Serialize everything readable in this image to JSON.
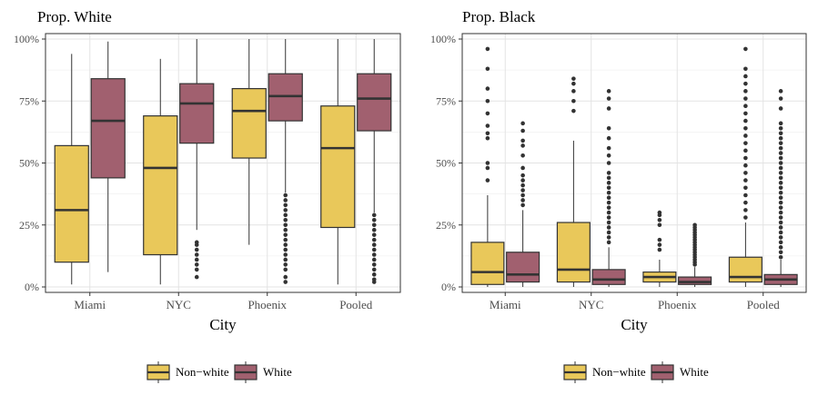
{
  "chart_data": [
    {
      "type": "box",
      "title": "Prop. White",
      "xlabel": "City",
      "ylabel": "",
      "categories": [
        "Miami",
        "NYC",
        "Phoenix",
        "Pooled"
      ],
      "y_ticks": [
        "0%",
        "25%",
        "50%",
        "75%",
        "100%"
      ],
      "ylim": [
        0,
        1
      ],
      "grid": true,
      "legend_position": "bottom",
      "series": [
        {
          "name": "Non−white",
          "color": "#E9C85A",
          "boxes": [
            {
              "min": 0.01,
              "q1": 0.1,
              "median": 0.31,
              "q3": 0.57,
              "max": 0.94,
              "outliers": []
            },
            {
              "min": 0.01,
              "q1": 0.13,
              "median": 0.48,
              "q3": 0.69,
              "max": 0.92,
              "outliers": []
            },
            {
              "min": 0.17,
              "q1": 0.52,
              "median": 0.71,
              "q3": 0.8,
              "max": 1.0,
              "outliers": []
            },
            {
              "min": 0.01,
              "q1": 0.24,
              "median": 0.56,
              "q3": 0.73,
              "max": 1.0,
              "outliers": []
            }
          ]
        },
        {
          "name": "White",
          "color": "#A1606F",
          "boxes": [
            {
              "min": 0.06,
              "q1": 0.44,
              "median": 0.67,
              "q3": 0.84,
              "max": 0.99,
              "outliers": []
            },
            {
              "min": 0.23,
              "q1": 0.58,
              "median": 0.74,
              "q3": 0.82,
              "max": 1.0,
              "outliers": [
                0.04,
                0.07,
                0.09,
                0.11,
                0.13,
                0.15,
                0.17,
                0.18
              ]
            },
            {
              "min": 0.38,
              "q1": 0.67,
              "median": 0.77,
              "q3": 0.86,
              "max": 1.0,
              "outliers": [
                0.02,
                0.04,
                0.07,
                0.09,
                0.11,
                0.13,
                0.15,
                0.17,
                0.19,
                0.21,
                0.23,
                0.25,
                0.27,
                0.29,
                0.31,
                0.33,
                0.35,
                0.37
              ]
            },
            {
              "min": 0.3,
              "q1": 0.63,
              "median": 0.76,
              "q3": 0.86,
              "max": 1.0,
              "outliers": [
                0.02,
                0.03,
                0.05,
                0.07,
                0.09,
                0.11,
                0.13,
                0.15,
                0.17,
                0.19,
                0.21,
                0.23,
                0.25,
                0.27,
                0.29
              ]
            }
          ]
        }
      ]
    },
    {
      "type": "box",
      "title": "Prop. Black",
      "xlabel": "City",
      "ylabel": "",
      "categories": [
        "Miami",
        "NYC",
        "Phoenix",
        "Pooled"
      ],
      "y_ticks": [
        "0%",
        "25%",
        "50%",
        "75%",
        "100%"
      ],
      "ylim": [
        0,
        1
      ],
      "grid": true,
      "legend_position": "bottom",
      "series": [
        {
          "name": "Non−white",
          "color": "#E9C85A",
          "boxes": [
            {
              "min": 0.0,
              "q1": 0.01,
              "median": 0.06,
              "q3": 0.18,
              "max": 0.37,
              "outliers": [
                0.43,
                0.48,
                0.5,
                0.6,
                0.62,
                0.65,
                0.7,
                0.75,
                0.8,
                0.88,
                0.96
              ]
            },
            {
              "min": 0.0,
              "q1": 0.02,
              "median": 0.07,
              "q3": 0.26,
              "max": 0.59,
              "outliers": [
                0.71,
                0.75,
                0.79,
                0.82,
                0.84
              ]
            },
            {
              "min": 0.0,
              "q1": 0.02,
              "median": 0.04,
              "q3": 0.06,
              "max": 0.11,
              "outliers": [
                0.15,
                0.17,
                0.19,
                0.25,
                0.27,
                0.29,
                0.3
              ]
            },
            {
              "min": 0.0,
              "q1": 0.02,
              "median": 0.04,
              "q3": 0.12,
              "max": 0.26,
              "outliers": [
                0.28,
                0.31,
                0.34,
                0.37,
                0.4,
                0.43,
                0.46,
                0.49,
                0.52,
                0.55,
                0.58,
                0.61,
                0.64,
                0.67,
                0.7,
                0.73,
                0.76,
                0.79,
                0.82,
                0.85,
                0.88,
                0.96
              ]
            }
          ]
        },
        {
          "name": "White",
          "color": "#A1606F",
          "boxes": [
            {
              "min": 0.0,
              "q1": 0.02,
              "median": 0.05,
              "q3": 0.14,
              "max": 0.31,
              "outliers": [
                0.33,
                0.35,
                0.37,
                0.39,
                0.41,
                0.43,
                0.45,
                0.48,
                0.53,
                0.57,
                0.59,
                0.63,
                0.66
              ]
            },
            {
              "min": 0.0,
              "q1": 0.01,
              "median": 0.03,
              "q3": 0.07,
              "max": 0.16,
              "outliers": [
                0.18,
                0.2,
                0.22,
                0.24,
                0.26,
                0.28,
                0.3,
                0.32,
                0.34,
                0.36,
                0.38,
                0.4,
                0.42,
                0.44,
                0.46,
                0.5,
                0.53,
                0.56,
                0.6,
                0.64,
                0.72,
                0.76,
                0.79
              ]
            },
            {
              "min": 0.0,
              "q1": 0.01,
              "median": 0.02,
              "q3": 0.04,
              "max": 0.08,
              "outliers": [
                0.09,
                0.1,
                0.11,
                0.12,
                0.13,
                0.14,
                0.15,
                0.16,
                0.17,
                0.18,
                0.19,
                0.2,
                0.21,
                0.22,
                0.23,
                0.24,
                0.25
              ]
            },
            {
              "min": 0.0,
              "q1": 0.01,
              "median": 0.03,
              "q3": 0.05,
              "max": 0.11,
              "outliers": [
                0.12,
                0.14,
                0.16,
                0.18,
                0.2,
                0.22,
                0.24,
                0.26,
                0.28,
                0.3,
                0.32,
                0.34,
                0.36,
                0.38,
                0.4,
                0.42,
                0.44,
                0.46,
                0.48,
                0.5,
                0.52,
                0.54,
                0.56,
                0.58,
                0.6,
                0.62,
                0.64,
                0.66,
                0.72,
                0.76,
                0.79
              ]
            }
          ]
        }
      ]
    }
  ]
}
